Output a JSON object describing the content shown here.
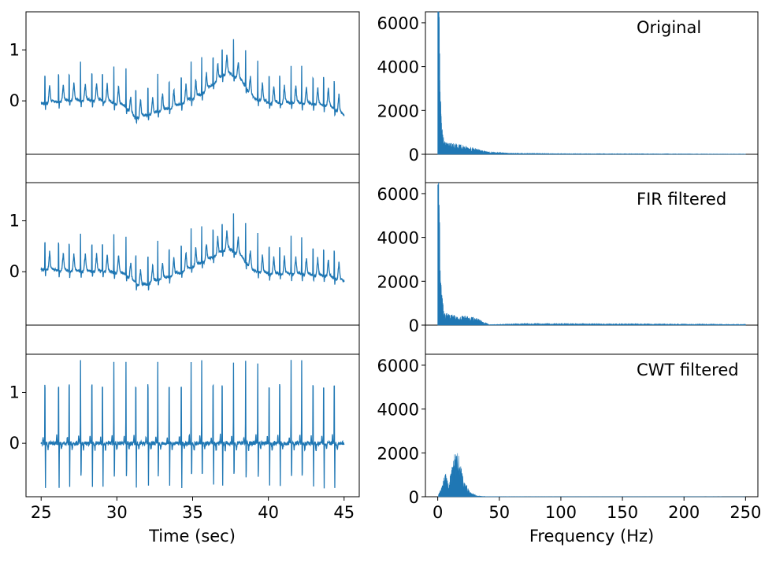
{
  "line_color": "#1f77b4",
  "xlabel_time": "Time (sec)",
  "xlabel_freq": "Frequency (Hz)",
  "chart_data": [
    {
      "type": "line",
      "panel": "ecg-original",
      "title": "",
      "xlabel": "",
      "ylabel": "",
      "xlim": [
        24,
        46
      ],
      "ylim": [
        -1.05,
        1.75
      ],
      "yticks": [
        0,
        1
      ],
      "xticks": [],
      "series": [
        {
          "x_range": [
            25,
            45
          ],
          "beat_times": [
            25.25,
            26.15,
            26.85,
            27.6,
            28.35,
            29.05,
            29.8,
            30.6,
            31.25,
            32.05,
            32.7,
            33.45,
            34.25,
            34.9,
            35.6,
            36.35,
            36.95,
            37.7,
            38.5,
            39.3,
            40.05,
            40.75,
            41.5,
            42.2,
            42.95,
            43.65,
            44.35
          ],
          "baseline_points": [
            [
              25,
              -0.05
            ],
            [
              27,
              0.0
            ],
            [
              29,
              0.0
            ],
            [
              30.5,
              -0.1
            ],
            [
              31.2,
              -0.35
            ],
            [
              32.5,
              -0.25
            ],
            [
              34,
              -0.1
            ],
            [
              35.5,
              0.1
            ],
            [
              36.5,
              0.35
            ],
            [
              37.3,
              0.55
            ],
            [
              38.2,
              0.4
            ],
            [
              39,
              0.05
            ],
            [
              40,
              -0.05
            ],
            [
              42,
              -0.05
            ],
            [
              44,
              -0.1
            ],
            [
              45,
              -0.3
            ]
          ],
          "r_peak_height": 0.75
        }
      ]
    },
    {
      "type": "area",
      "panel": "spectrum-original",
      "annotation": "Original",
      "xlim": [
        -10,
        260
      ],
      "ylim": [
        0,
        6500
      ],
      "yticks": [
        0,
        2000,
        4000,
        6000
      ],
      "xticks": [],
      "series": [
        {
          "x_range": [
            0,
            250
          ],
          "peak": [
            [
              0.5,
              6500
            ],
            [
              1.2,
              4800
            ],
            [
              2.0,
              2300
            ],
            [
              3.0,
              1150
            ],
            [
              5,
              420
            ],
            [
              10,
              380
            ],
            [
              20,
              300
            ],
            [
              30,
              200
            ],
            [
              40,
              90
            ],
            [
              60,
              40
            ],
            [
              100,
              25
            ],
            [
              250,
              10
            ]
          ]
        }
      ]
    },
    {
      "type": "line",
      "panel": "ecg-fir",
      "xlim": [
        24,
        46
      ],
      "ylim": [
        -1.05,
        1.75
      ],
      "yticks": [
        0,
        1
      ],
      "xticks": [],
      "series": [
        {
          "x_range": [
            25,
            45
          ],
          "baseline_points": [
            [
              25,
              0.05
            ],
            [
              27,
              0.0
            ],
            [
              29,
              0.0
            ],
            [
              30.5,
              -0.05
            ],
            [
              31.5,
              -0.3
            ],
            [
              32.5,
              -0.2
            ],
            [
              34,
              -0.05
            ],
            [
              35.5,
              0.15
            ],
            [
              36.5,
              0.3
            ],
            [
              37.3,
              0.45
            ],
            [
              38.2,
              0.3
            ],
            [
              39,
              0.0
            ],
            [
              40,
              -0.05
            ],
            [
              42,
              -0.05
            ],
            [
              44,
              -0.1
            ],
            [
              45,
              -0.2
            ]
          ],
          "r_peak_height": 0.75
        }
      ]
    },
    {
      "type": "area",
      "panel": "spectrum-fir",
      "annotation": "FIR filtered",
      "xlim": [
        -10,
        260
      ],
      "ylim": [
        0,
        6500
      ],
      "yticks": [
        0,
        2000,
        4000,
        6000
      ],
      "xticks": [],
      "series": [
        {
          "x_range": [
            0,
            250
          ],
          "peak": [
            [
              0.5,
              6400
            ],
            [
              1.2,
              4600
            ],
            [
              2.0,
              2200
            ],
            [
              3.0,
              1200
            ],
            [
              5,
              400
            ],
            [
              10,
              350
            ],
            [
              20,
              300
            ],
            [
              30,
              250
            ],
            [
              38,
              100
            ],
            [
              42,
              15
            ],
            [
              70,
              60
            ],
            [
              150,
              50
            ],
            [
              250,
              30
            ]
          ]
        }
      ]
    },
    {
      "type": "line",
      "panel": "ecg-cwt",
      "xlim": [
        24,
        46
      ],
      "ylim": [
        -1.05,
        1.75
      ],
      "yticks": [
        0,
        1
      ],
      "xticks": [
        25,
        30,
        35,
        40,
        45
      ],
      "series": [
        {
          "x_range": [
            25,
            45
          ],
          "r_peak_height": 1.6,
          "s_trough": -0.85
        }
      ]
    },
    {
      "type": "area",
      "panel": "spectrum-cwt",
      "annotation": "CWT filtered",
      "xlim": [
        -10,
        260
      ],
      "ylim": [
        0,
        6500
      ],
      "yticks": [
        0,
        2000,
        4000,
        6000
      ],
      "xticks": [
        0,
        50,
        100,
        150,
        200,
        250
      ],
      "series": [
        {
          "x_range": [
            0,
            250
          ],
          "peak": [
            [
              0,
              0
            ],
            [
              3,
              300
            ],
            [
              6,
              800
            ],
            [
              9,
              400
            ],
            [
              12,
              1100
            ],
            [
              15,
              1600
            ],
            [
              18,
              1200
            ],
            [
              22,
              500
            ],
            [
              26,
              150
            ],
            [
              32,
              30
            ],
            [
              40,
              5
            ],
            [
              250,
              0
            ]
          ]
        }
      ]
    }
  ]
}
